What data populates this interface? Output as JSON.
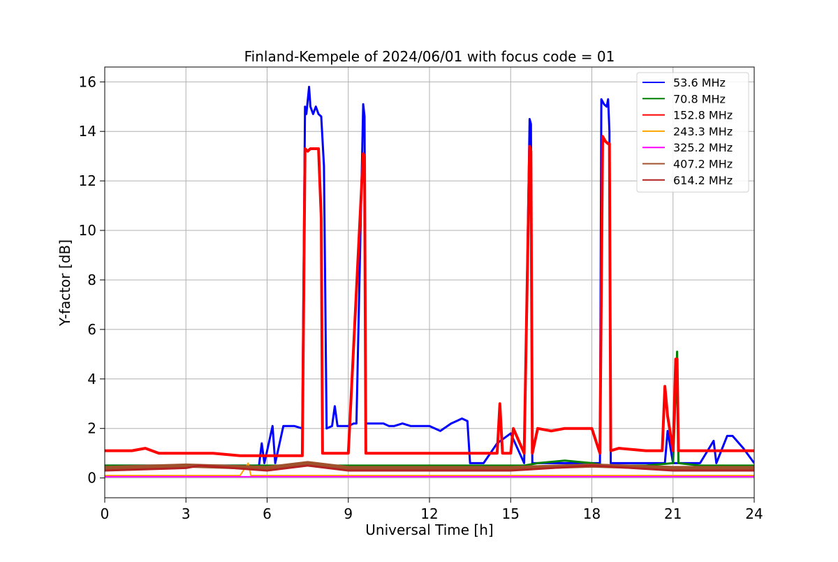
{
  "chart_data": {
    "type": "line",
    "title": "Finland-Kempele of 2024/06/01 with focus code = 01",
    "xlabel": "Universal Time [h]",
    "ylabel": "Y-factor [dB]",
    "xlim": [
      0,
      24
    ],
    "ylim": [
      -0.8,
      16.6
    ],
    "xticks": [
      "0",
      "3",
      "6",
      "9",
      "12",
      "15",
      "18",
      "21",
      "24"
    ],
    "yticks": [
      "0",
      "2",
      "4",
      "6",
      "8",
      "10",
      "12",
      "14",
      "16"
    ],
    "grid": true,
    "legend_position": "top-right",
    "series": [
      {
        "name": " 53.6 MHz",
        "color": "#0000ff",
        "x": [
          0,
          5.7,
          5.8,
          5.9,
          6.2,
          6.3,
          6.6,
          6.7,
          6.8,
          7.0,
          7.3,
          7.4,
          7.45,
          7.55,
          7.6,
          7.7,
          7.8,
          7.9,
          8.0,
          8.1,
          8.2,
          8.4,
          8.5,
          8.6,
          8.8,
          9.0,
          9.2,
          9.3,
          9.55,
          9.6,
          9.65,
          9.8,
          10.0,
          10.3,
          10.5,
          10.7,
          11.0,
          11.3,
          11.5,
          11.8,
          12.0,
          12.4,
          12.8,
          13.0,
          13.2,
          13.4,
          13.5,
          14.0,
          14.5,
          15.0,
          15.5,
          15.7,
          15.75,
          15.8,
          16.0,
          17.0,
          18.0,
          18.3,
          18.35,
          18.45,
          18.55,
          18.6,
          18.65,
          18.7,
          19.0,
          20.0,
          20.7,
          20.8,
          21.0,
          21.5,
          22.0,
          22.5,
          22.6,
          23.0,
          23.2,
          23.6,
          24.0
        ],
        "y": [
          0.5,
          0.5,
          1.4,
          0.6,
          2.1,
          0.6,
          2.1,
          2.1,
          2.1,
          2.1,
          2.0,
          15.0,
          14.7,
          15.8,
          15.0,
          14.7,
          15.0,
          14.7,
          14.6,
          12.6,
          2.0,
          2.1,
          2.9,
          2.1,
          2.1,
          2.1,
          2.2,
          2.2,
          15.1,
          14.6,
          2.2,
          2.2,
          2.2,
          2.2,
          2.1,
          2.1,
          2.2,
          2.1,
          2.1,
          2.1,
          2.1,
          1.9,
          2.2,
          2.3,
          2.4,
          2.3,
          0.6,
          0.6,
          1.4,
          1.8,
          0.6,
          14.5,
          14.3,
          0.6,
          0.6,
          0.6,
          0.6,
          0.6,
          15.3,
          15.1,
          15.0,
          15.3,
          14.0,
          0.6,
          0.6,
          0.6,
          0.6,
          1.9,
          0.6,
          0.6,
          0.6,
          1.5,
          0.6,
          1.7,
          1.7,
          1.2,
          0.6
        ]
      },
      {
        "name": " 70.8 MHz",
        "color": "#008000",
        "x": [
          0,
          15.0,
          15.5,
          16.0,
          17.0,
          18.0,
          18.5,
          20.0,
          21.0,
          21.1,
          21.15,
          21.2,
          22.0,
          24.0
        ],
        "y": [
          0.5,
          0.5,
          0.5,
          0.6,
          0.7,
          0.6,
          0.5,
          0.5,
          0.6,
          3.5,
          5.1,
          0.6,
          0.5,
          0.5
        ]
      },
      {
        "name": " 152.8 MHz",
        "color": "#ff0000",
        "x": [
          0,
          1.0,
          1.5,
          2.0,
          3.0,
          4.0,
          5.0,
          6.0,
          7.0,
          7.3,
          7.4,
          7.5,
          7.6,
          7.7,
          7.8,
          7.9,
          8.0,
          8.05,
          8.3,
          9.0,
          9.55,
          9.6,
          9.65,
          10.0,
          11.0,
          12.0,
          13.0,
          14.0,
          14.5,
          14.6,
          14.7,
          15.0,
          15.1,
          15.5,
          15.7,
          15.75,
          15.8,
          16.0,
          16.5,
          17.0,
          17.5,
          18.0,
          18.3,
          18.4,
          18.5,
          18.6,
          18.65,
          18.7,
          19.0,
          20.0,
          20.6,
          20.7,
          20.8,
          21.0,
          21.1,
          21.15,
          21.2,
          21.5,
          22.0,
          23.0,
          24.0
        ],
        "y": [
          1.1,
          1.1,
          1.2,
          1.0,
          1.0,
          1.0,
          0.9,
          0.9,
          0.9,
          0.9,
          13.3,
          13.2,
          13.3,
          13.3,
          13.3,
          13.3,
          10.5,
          1.0,
          1.0,
          1.0,
          13.1,
          13.0,
          1.0,
          1.0,
          1.0,
          1.0,
          1.0,
          1.0,
          1.0,
          3.0,
          1.0,
          1.0,
          2.0,
          1.0,
          13.4,
          13.2,
          1.0,
          2.0,
          1.9,
          2.0,
          2.0,
          2.0,
          1.0,
          13.8,
          13.6,
          13.5,
          13.5,
          1.1,
          1.2,
          1.1,
          1.1,
          3.7,
          2.5,
          1.1,
          4.8,
          4.8,
          1.1,
          1.1,
          1.1,
          1.1,
          1.1
        ]
      },
      {
        "name": " 243.3 MHz",
        "color": "#ffa500",
        "x": [
          0,
          5.0,
          5.3,
          5.4,
          6.0,
          10.0,
          15.0,
          20.0,
          24.0
        ],
        "y": [
          0.1,
          0.1,
          0.6,
          0.1,
          0.1,
          0.1,
          0.1,
          0.1,
          0.1
        ]
      },
      {
        "name": " 325.2 MHz",
        "color": "#ff00ff",
        "x": [
          0,
          3.0,
          6.0,
          9.0,
          12.0,
          15.0,
          18.0,
          21.0,
          24.0
        ],
        "y": [
          0.05,
          0.05,
          0.05,
          0.05,
          0.05,
          0.05,
          0.05,
          0.05,
          0.05
        ]
      },
      {
        "name": " 407.2 MHz",
        "color": "#a0522d",
        "x": [
          0,
          3.0,
          6.0,
          7.5,
          9.0,
          12.0,
          15.0,
          18.0,
          21.0,
          24.0
        ],
        "y": [
          0.4,
          0.5,
          0.4,
          0.6,
          0.4,
          0.4,
          0.4,
          0.5,
          0.4,
          0.4
        ]
      },
      {
        "name": " 614.2 MHz",
        "color": "#b22222",
        "x": [
          0,
          3.0,
          3.5,
          6.0,
          7.5,
          9.0,
          12.0,
          15.0,
          18.0,
          21.0,
          24.0
        ],
        "y": [
          0.3,
          0.4,
          0.5,
          0.3,
          0.5,
          0.3,
          0.3,
          0.3,
          0.5,
          0.3,
          0.3
        ]
      }
    ]
  }
}
